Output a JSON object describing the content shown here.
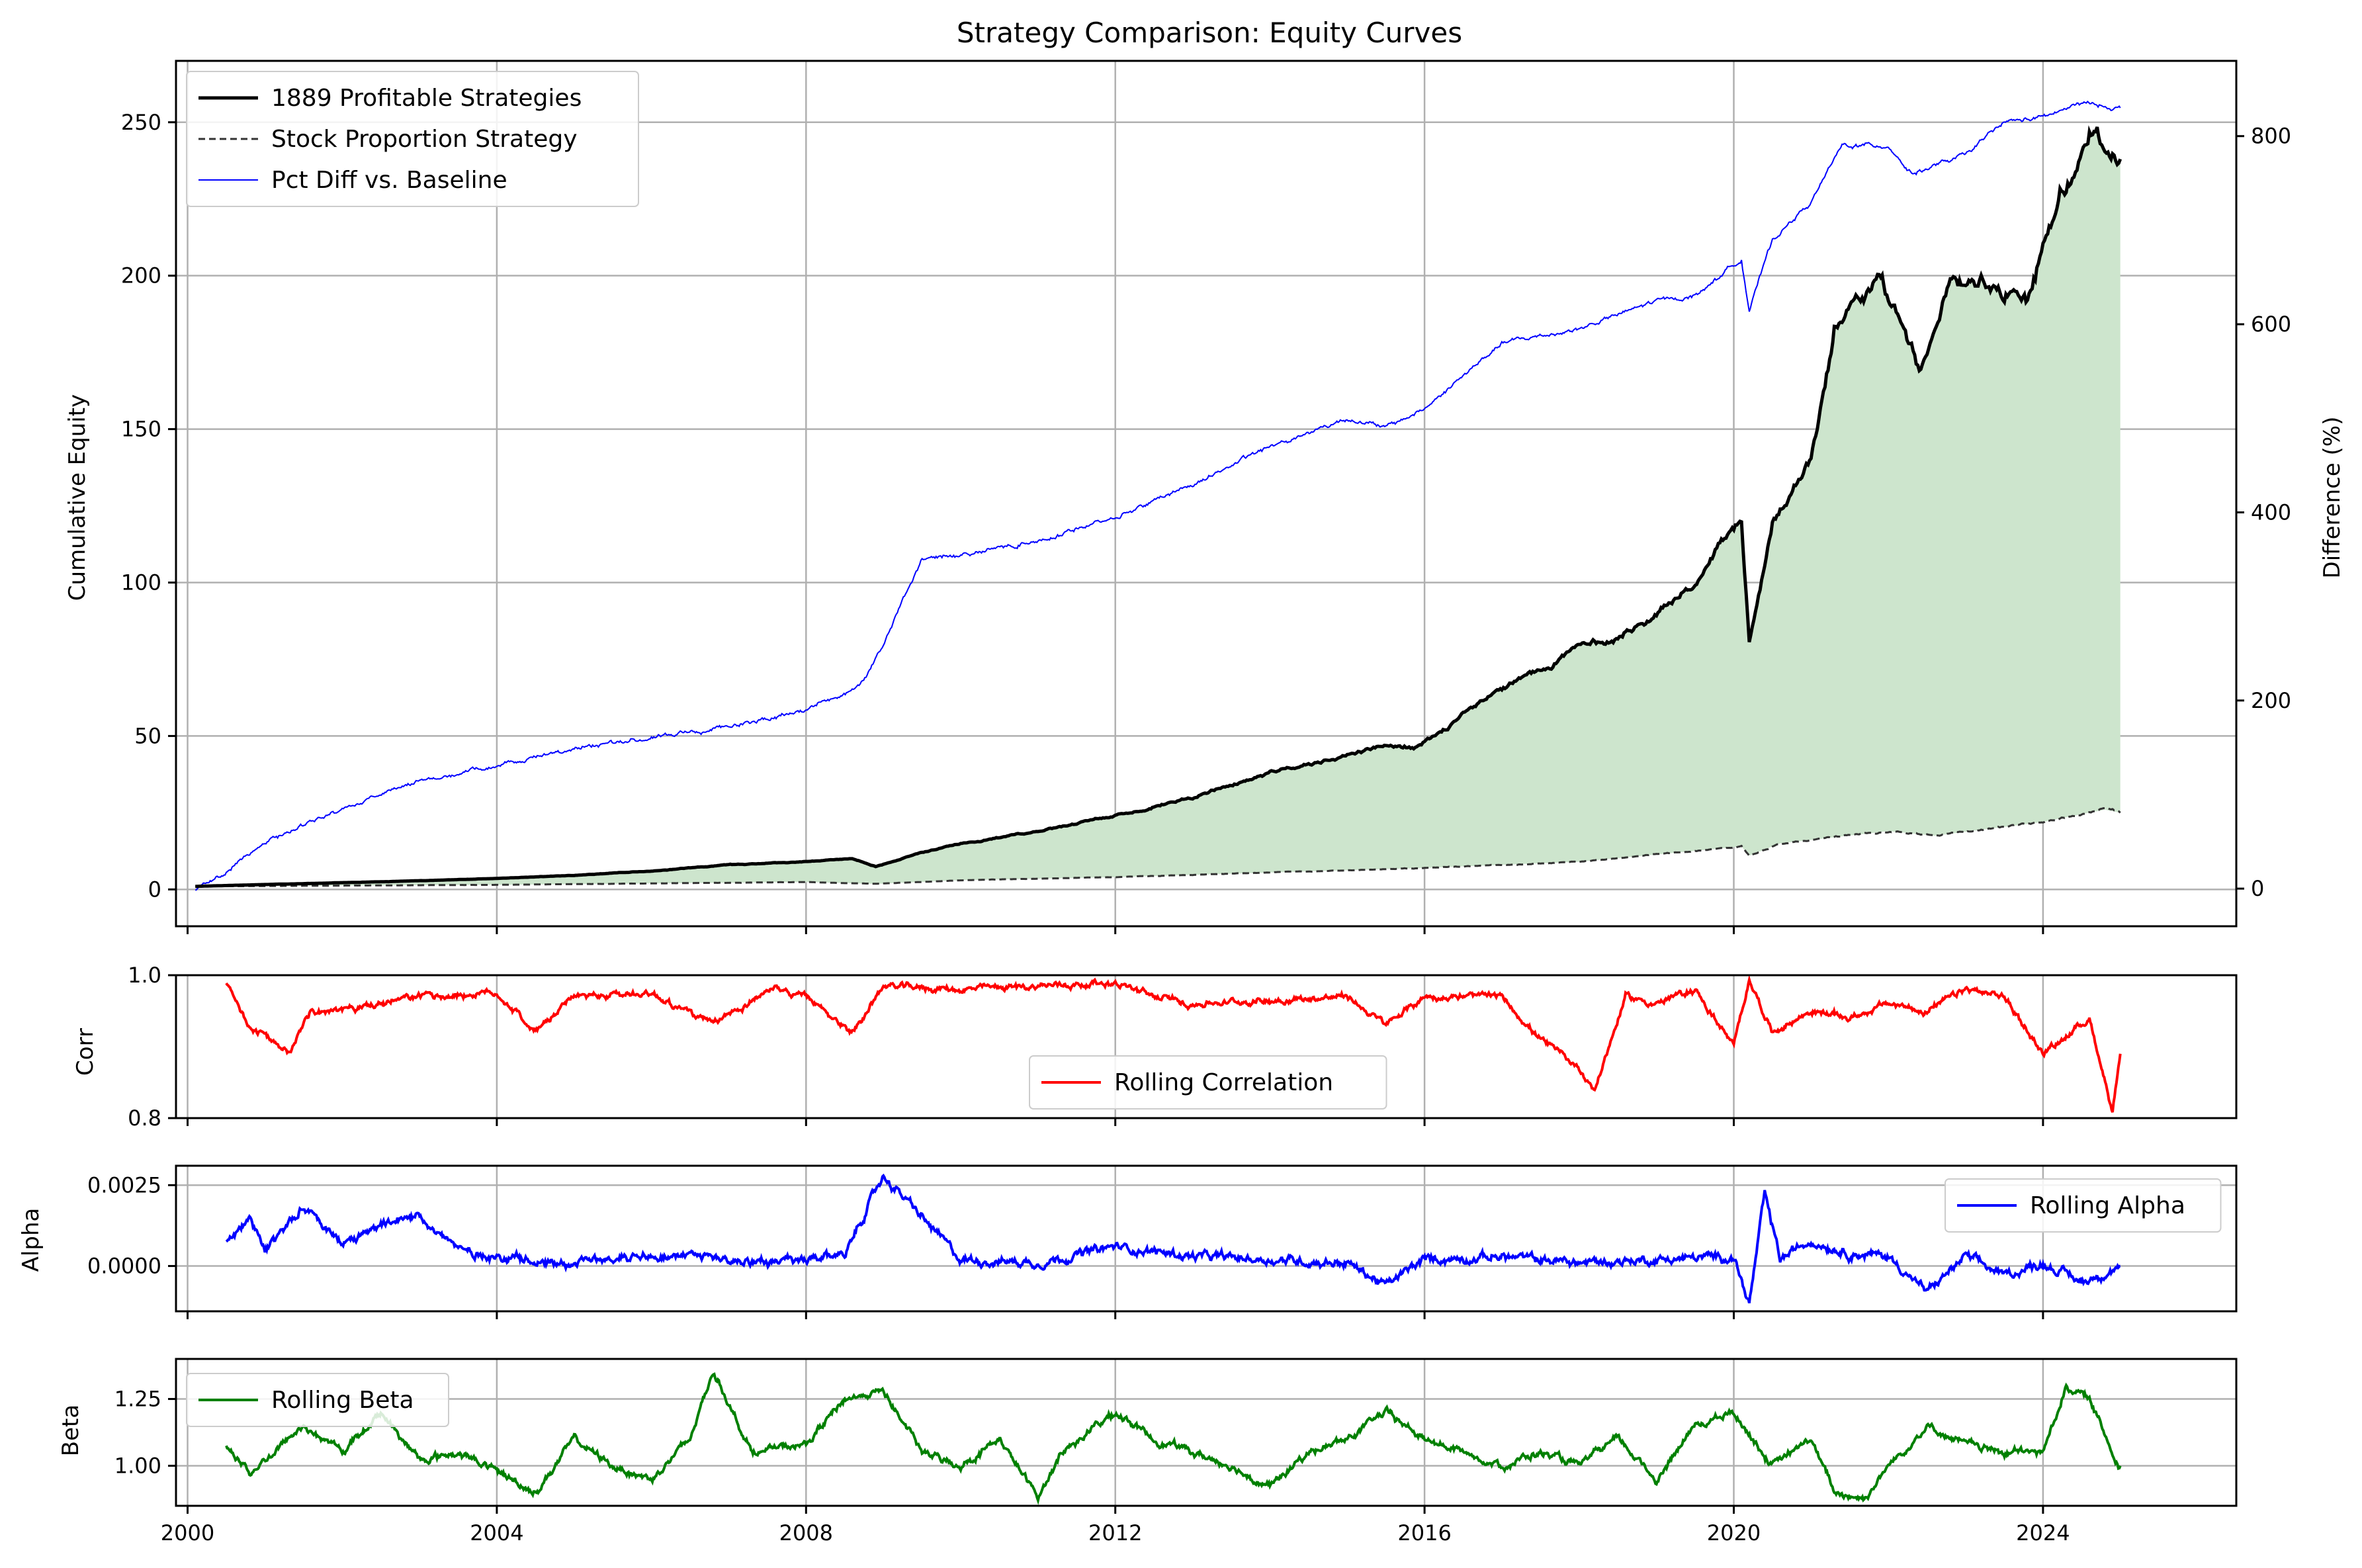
{
  "chart_data": [
    {
      "type": "line",
      "title": "Strategy Comparison: Equity Curves",
      "ylabel": "Cumulative Equity",
      "y2label": "Difference (%)",
      "xlim": [
        1999.85,
        2026.5
      ],
      "ylim": [
        -12,
        270
      ],
      "y2lim": [
        -40,
        880
      ],
      "xticks": [
        2000,
        2004,
        2008,
        2012,
        2016,
        2020,
        2024
      ],
      "yticks": [
        0,
        50,
        100,
        150,
        200,
        250
      ],
      "y2ticks": [
        0,
        200,
        400,
        600,
        800
      ],
      "grid": true,
      "legend_position": "top-left",
      "fill_between": {
        "from": "Stock Proportion Strategy",
        "to": "1889 Profitable Strategies",
        "color": "#cde5cd"
      },
      "series": [
        {
          "name": "1889 Profitable Strategies",
          "color": "#000000",
          "style": "solid",
          "axis": "left",
          "x": [
            2000.1,
            2001,
            2002,
            2003,
            2004,
            2005,
            2006,
            2007,
            2008,
            2008.6,
            2008.9,
            2009.5,
            2010,
            2011,
            2011.6,
            2012,
            2013,
            2014,
            2015,
            2015.5,
            2015.9,
            2016.3,
            2016.8,
            2017.5,
            2018,
            2018.5,
            2019,
            2019.5,
            2020.1,
            2020.2,
            2020.5,
            2021,
            2021.3,
            2021.9,
            2022.4,
            2022.8,
            2023.2,
            2023.8,
            2024.2,
            2024.6,
            2024.8,
            2025.0
          ],
          "y": [
            1,
            1.6,
            2.2,
            2.8,
            3.6,
            4.6,
            6,
            8,
            9,
            10,
            7.5,
            12,
            15,
            19,
            22,
            24,
            30,
            38,
            44,
            47,
            46,
            53,
            62,
            72,
            79,
            82,
            90,
            100,
            121,
            80,
            118,
            140,
            182,
            198,
            170,
            195,
            198,
            192,
            225,
            248,
            242,
            238
          ]
        },
        {
          "name": "Stock Proportion Strategy",
          "color": "#333333",
          "style": "dashed",
          "axis": "left",
          "x": [
            2000.1,
            2004,
            2008,
            2008.9,
            2010,
            2012,
            2016,
            2018,
            2020.1,
            2020.2,
            2020.6,
            2022,
            2022.6,
            2024,
            2024.8,
            2025.0
          ],
          "y": [
            1,
            1.5,
            2.4,
            1.8,
            3,
            4,
            7,
            9,
            14,
            11,
            15,
            19,
            17.5,
            22,
            26,
            25
          ]
        },
        {
          "name": "Pct Diff vs. Baseline",
          "color": "#0000ff",
          "style": "solid",
          "axis": "right",
          "x": [
            2000.1,
            2000.5,
            2001,
            2002,
            2003,
            2004,
            2005,
            2006,
            2007,
            2008,
            2008.7,
            2009,
            2009.5,
            2010,
            2011,
            2012,
            2013,
            2014,
            2015,
            2015.5,
            2016,
            2017,
            2018,
            2019,
            2019.5,
            2020.1,
            2020.2,
            2020.5,
            2021,
            2021.4,
            2022,
            2022.3,
            2023,
            2023.5,
            2024,
            2024.5,
            2025.0
          ],
          "y": [
            0,
            18,
            50,
            85,
            115,
            130,
            150,
            160,
            173,
            190,
            215,
            260,
            350,
            355,
            370,
            395,
            430,
            470,
            500,
            490,
            510,
            580,
            595,
            625,
            630,
            670,
            615,
            690,
            730,
            790,
            790,
            760,
            780,
            815,
            820,
            835,
            830
          ]
        }
      ]
    },
    {
      "type": "line",
      "ylabel": "Corr",
      "xlim": [
        1999.85,
        2026.5
      ],
      "ylim": [
        0.8,
        1.0
      ],
      "yticks": [
        "0.8",
        "1.0"
      ],
      "grid": true,
      "legend_position": "lower-center",
      "series": [
        {
          "name": "Rolling Correlation",
          "color": "#ff0000",
          "x": [
            2000.5,
            2000.8,
            2001.3,
            2001.6,
            2002,
            2003,
            2004,
            2004.5,
            2005,
            2006,
            2006.8,
            2007.5,
            2008,
            2008.6,
            2009,
            2010,
            2011,
            2012,
            2012.5,
            2013,
            2014,
            2015,
            2015.5,
            2016,
            2017,
            2017.5,
            2018,
            2018.2,
            2018.6,
            2019,
            2019.5,
            2020,
            2020.2,
            2020.5,
            2021,
            2021.5,
            2022,
            2022.5,
            2023,
            2023.5,
            2024,
            2024.6,
            2024.9,
            2025.0
          ],
          "y": [
            0.99,
            0.93,
            0.89,
            0.95,
            0.95,
            0.97,
            0.975,
            0.92,
            0.97,
            0.975,
            0.93,
            0.98,
            0.97,
            0.92,
            0.985,
            0.98,
            0.985,
            0.99,
            0.97,
            0.96,
            0.965,
            0.97,
            0.93,
            0.97,
            0.97,
            0.91,
            0.87,
            0.84,
            0.97,
            0.96,
            0.98,
            0.9,
            0.995,
            0.92,
            0.95,
            0.94,
            0.96,
            0.95,
            0.98,
            0.97,
            0.89,
            0.94,
            0.81,
            0.89
          ]
        }
      ]
    },
    {
      "type": "line",
      "ylabel": "Alpha",
      "xlim": [
        1999.85,
        2026.5
      ],
      "ylim": [
        -0.0014,
        0.0031
      ],
      "yticks": [
        "0.0000",
        "0.0025"
      ],
      "grid": true,
      "legend_position": "upper-right",
      "series": [
        {
          "name": "Rolling Alpha",
          "color": "#0000ff",
          "x": [
            2000.5,
            2000.8,
            2001,
            2001.5,
            2002,
            2002.5,
            2003,
            2003.5,
            2004,
            2005,
            2006,
            2007,
            2008,
            2008.5,
            2009,
            2009.5,
            2010,
            2011,
            2012,
            2013,
            2014,
            2015,
            2015.5,
            2016,
            2017,
            2018,
            2019,
            2020,
            2020.2,
            2020.4,
            2020.6,
            2021,
            2021.5,
            2022,
            2022.5,
            2023,
            2023.5,
            2024,
            2024.5,
            2025.0
          ],
          "y": [
            0.0008,
            0.0015,
            0.0004,
            0.0019,
            0.0006,
            0.0012,
            0.0016,
            0.0005,
            0.0003,
            0.0001,
            0.0004,
            0.0002,
            0.0001,
            0.0004,
            0.0028,
            0.0015,
            0.0002,
            0.0001,
            0.0006,
            0.0003,
            0.0002,
            0.0001,
            -0.0006,
            0.0002,
            0.0003,
            0.0001,
            0.0002,
            0.0003,
            -0.0012,
            0.0022,
            0.0002,
            0.0008,
            0.0004,
            0.0003,
            -0.0008,
            0.0003,
            -0.0003,
            0.0001,
            -0.0005,
            0.0
          ]
        }
      ]
    },
    {
      "type": "line",
      "ylabel": "Beta",
      "xlim": [
        1999.85,
        2026.5
      ],
      "ylim": [
        0.85,
        1.4
      ],
      "yticks": [
        "1.00",
        "1.25"
      ],
      "xticks": [
        2000,
        2004,
        2008,
        2012,
        2016,
        2020,
        2024
      ],
      "grid": true,
      "legend_position": "upper-left",
      "series": [
        {
          "name": "Rolling Beta",
          "color": "#008000",
          "x": [
            2000.5,
            2000.8,
            2001.5,
            2002,
            2002.5,
            2003,
            2003.5,
            2004,
            2004.5,
            2005,
            2005.5,
            2006,
            2006.5,
            2006.8,
            2007.3,
            2008,
            2008.5,
            2009,
            2009.5,
            2010,
            2010.5,
            2011,
            2011.3,
            2012,
            2012.5,
            2013,
            2013.5,
            2014,
            2014.5,
            2015,
            2015.5,
            2016,
            2016.5,
            2017,
            2017.5,
            2018,
            2018.5,
            2019,
            2019.5,
            2020,
            2020.5,
            2021,
            2021.3,
            2021.7,
            2022,
            2022.5,
            2023,
            2023.5,
            2024,
            2024.3,
            2024.6,
            2024.9,
            2025.0
          ],
          "y": [
            1.08,
            0.97,
            1.15,
            1.05,
            1.2,
            1.02,
            1.05,
            0.98,
            0.9,
            1.1,
            1.0,
            0.95,
            1.1,
            1.36,
            1.05,
            1.08,
            1.25,
            1.28,
            1.05,
            1.0,
            1.1,
            0.88,
            1.05,
            1.2,
            1.1,
            1.05,
            1.0,
            0.92,
            1.05,
            1.1,
            1.2,
            1.1,
            1.05,
            1.0,
            1.05,
            1.0,
            1.1,
            0.95,
            1.15,
            1.2,
            1.0,
            1.1,
            0.9,
            0.88,
            1.0,
            1.15,
            1.08,
            1.05,
            1.05,
            1.3,
            1.25,
            1.05,
            1.0
          ]
        }
      ]
    }
  ]
}
